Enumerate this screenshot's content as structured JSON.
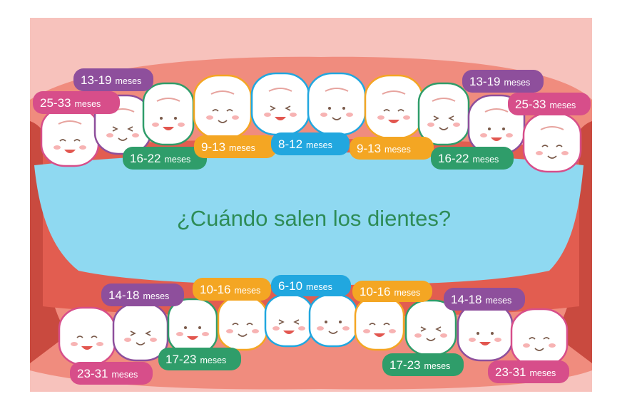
{
  "title": "¿Cuándo salen los dientes?",
  "colors": {
    "background": "#ffffff",
    "mouth_bg": "#f7c2bc",
    "gum": "#f08c7e",
    "gum_dark": "#e25d50",
    "throat": "#c94a3f",
    "tongue": "#8fd9f1",
    "tooth": "#ffffff",
    "purple": "#8e4f9c",
    "pink": "#d74e8a",
    "green": "#2f9d6a",
    "orange": "#f4a623",
    "blue": "#21a7df",
    "title": "#2e8c57"
  },
  "upper_teeth": [
    {
      "label": "25-33",
      "unit": "meses",
      "color": "pink"
    },
    {
      "label": "13-19",
      "unit": "meses",
      "color": "purple"
    },
    {
      "label": "16-22",
      "unit": "meses",
      "color": "green"
    },
    {
      "label": "9-13",
      "unit": "meses",
      "color": "orange"
    },
    {
      "label": "8-12",
      "unit": "meses",
      "color": "blue"
    },
    {
      "label": "8-12",
      "unit": "meses",
      "color": "blue"
    },
    {
      "label": "9-13",
      "unit": "meses",
      "color": "orange"
    },
    {
      "label": "16-22",
      "unit": "meses",
      "color": "green"
    },
    {
      "label": "13-19",
      "unit": "meses",
      "color": "purple"
    },
    {
      "label": "25-33",
      "unit": "meses",
      "color": "pink"
    }
  ],
  "lower_teeth": [
    {
      "label": "23-31",
      "unit": "meses",
      "color": "pink"
    },
    {
      "label": "14-18",
      "unit": "meses",
      "color": "purple"
    },
    {
      "label": "17-23",
      "unit": "meses",
      "color": "green"
    },
    {
      "label": "10-16",
      "unit": "meses",
      "color": "orange"
    },
    {
      "label": "6-10",
      "unit": "meses",
      "color": "blue"
    },
    {
      "label": "6-10",
      "unit": "meses",
      "color": "blue"
    },
    {
      "label": "10-16",
      "unit": "meses",
      "color": "orange"
    },
    {
      "label": "17-23",
      "unit": "meses",
      "color": "green"
    },
    {
      "label": "14-18",
      "unit": "meses",
      "color": "purple"
    },
    {
      "label": "23-31",
      "unit": "meses",
      "color": "pink"
    }
  ],
  "labels": [
    {
      "label": "13-19",
      "unit": "meses",
      "color": "purple"
    },
    {
      "label": "25-33",
      "unit": "meses",
      "color": "pink"
    },
    {
      "label": "16-22",
      "unit": "meses",
      "color": "green"
    },
    {
      "label": "9-13",
      "unit": "meses",
      "color": "orange"
    },
    {
      "label": "8-12",
      "unit": "meses",
      "color": "blue"
    },
    {
      "label": "9-13",
      "unit": "meses",
      "color": "orange"
    },
    {
      "label": "16-22",
      "unit": "meses",
      "color": "green"
    },
    {
      "label": "13-19",
      "unit": "meses",
      "color": "purple"
    },
    {
      "label": "25-33",
      "unit": "meses",
      "color": "pink"
    },
    {
      "label": "14-18",
      "unit": "meses",
      "color": "purple"
    },
    {
      "label": "10-16",
      "unit": "meses",
      "color": "orange"
    },
    {
      "label": "6-10",
      "unit": "meses",
      "color": "blue"
    },
    {
      "label": "10-16",
      "unit": "meses",
      "color": "orange"
    },
    {
      "label": "14-18",
      "unit": "meses",
      "color": "purple"
    },
    {
      "label": "23-31",
      "unit": "meses",
      "color": "pink"
    },
    {
      "label": "17-23",
      "unit": "meses",
      "color": "green"
    },
    {
      "label": "17-23",
      "unit": "meses",
      "color": "green"
    },
    {
      "label": "23-31",
      "unit": "meses",
      "color": "pink"
    }
  ]
}
